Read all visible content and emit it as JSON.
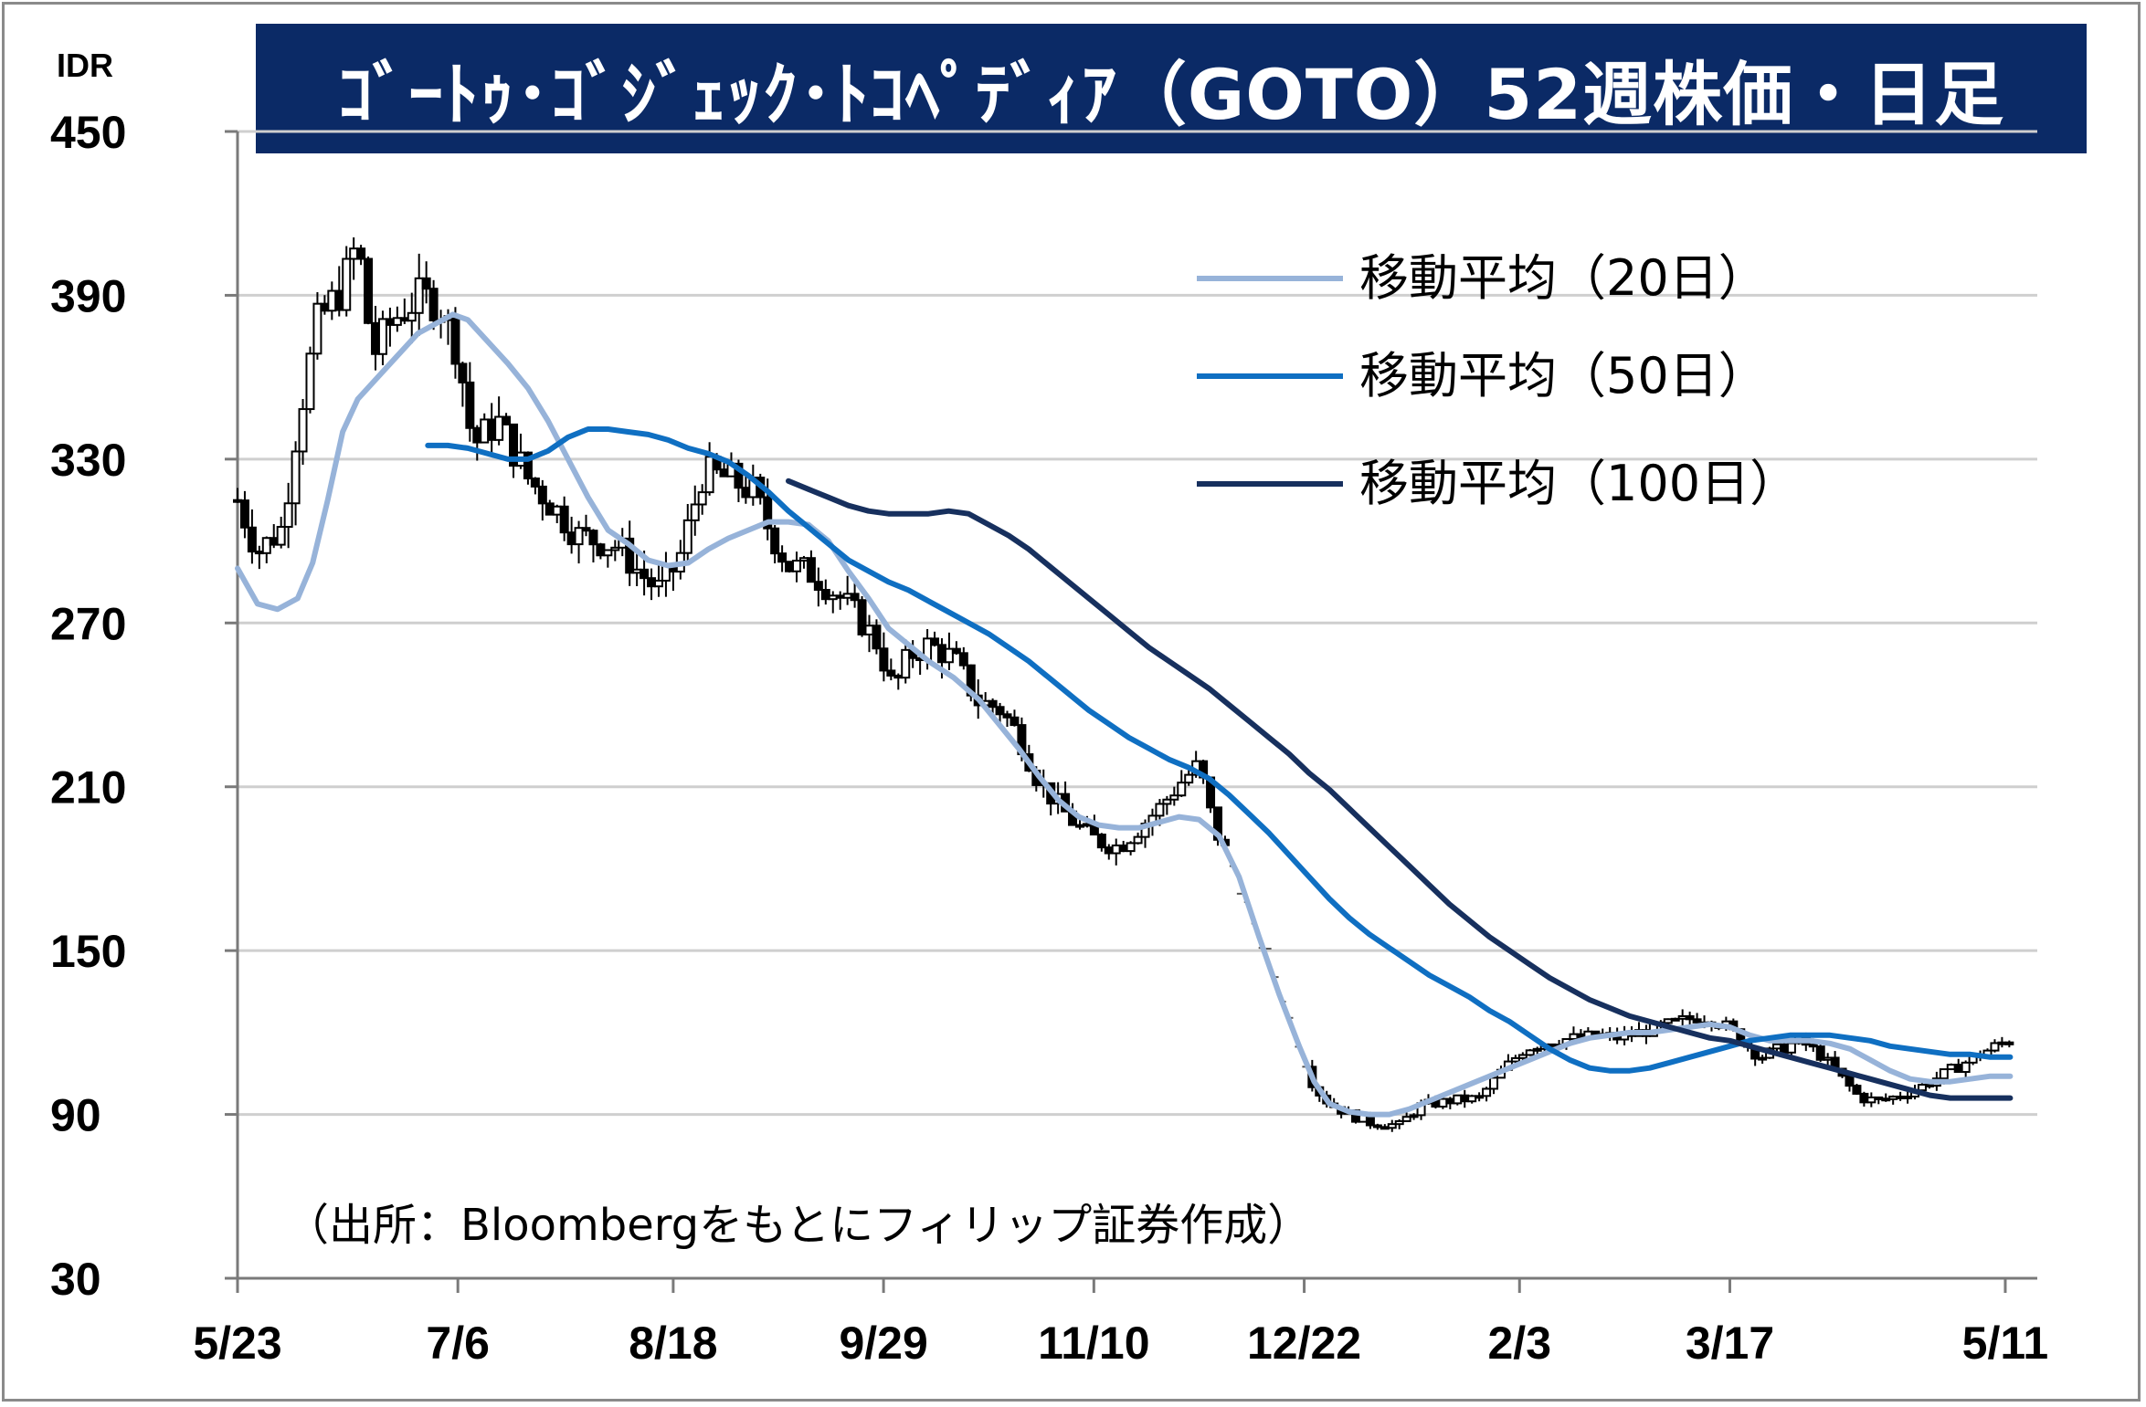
{
  "title": "ｺﾞｰﾄｩ･ｺﾞｼﾞｪｯｸ･ﾄｺﾍﾟﾃﾞｨｱ（GOTO）52週株価・日足",
  "source_note": "（出所：Bloombergをもとにフィリップ証券作成）",
  "chart_data": {
    "type": "candlestick",
    "title": "ｺﾞｰﾄｩ･ｺﾞｼﾞｪｯｸ･ﾄｺﾍﾟﾃﾞｨｱ（GOTO）52週株価・日足",
    "ylabel": "IDR",
    "ylim": [
      30,
      450
    ],
    "yticks": [
      450,
      390,
      330,
      270,
      210,
      150,
      90,
      30
    ],
    "xlim_days": [
      0,
      354
    ],
    "xticks": [
      {
        "label": "5/23",
        "day": 0
      },
      {
        "label": "7/6",
        "day": 44
      },
      {
        "label": "8/18",
        "day": 87
      },
      {
        "label": "9/29",
        "day": 129
      },
      {
        "label": "11/10",
        "day": 171
      },
      {
        "label": "12/22",
        "day": 213
      },
      {
        "label": "2/3",
        "day": 256
      },
      {
        "label": "3/17",
        "day": 298
      },
      {
        "label": "5/11",
        "day": 353
      }
    ],
    "grid": true,
    "legend_position": "top-right",
    "price_path": [
      [
        0,
        315
      ],
      [
        4,
        296
      ],
      [
        9,
        305
      ],
      [
        12,
        343
      ],
      [
        16,
        380
      ],
      [
        21,
        393
      ],
      [
        24,
        410
      ],
      [
        27,
        368
      ],
      [
        31,
        381
      ],
      [
        36,
        389
      ],
      [
        40,
        388
      ],
      [
        44,
        370
      ],
      [
        47,
        335
      ],
      [
        52,
        344
      ],
      [
        58,
        323
      ],
      [
        62,
        315
      ],
      [
        68,
        302
      ],
      [
        72,
        300
      ],
      [
        76,
        298
      ],
      [
        80,
        289
      ],
      [
        84,
        282
      ],
      [
        88,
        292
      ],
      [
        93,
        325
      ],
      [
        98,
        323
      ],
      [
        103,
        318
      ],
      [
        106,
        305
      ],
      [
        110,
        291
      ],
      [
        115,
        288
      ],
      [
        120,
        280
      ],
      [
        124,
        272
      ],
      [
        128,
        262
      ],
      [
        131,
        245
      ],
      [
        134,
        258
      ],
      [
        138,
        262
      ],
      [
        143,
        257
      ],
      [
        148,
        241
      ],
      [
        152,
        239
      ],
      [
        156,
        229
      ],
      [
        160,
        212
      ],
      [
        164,
        203
      ],
      [
        168,
        195
      ],
      [
        172,
        190
      ],
      [
        176,
        188
      ],
      [
        180,
        195
      ],
      [
        184,
        202
      ],
      [
        188,
        211
      ],
      [
        192,
        218
      ],
      [
        195,
        195
      ],
      [
        198,
        184
      ],
      [
        201,
        170
      ],
      [
        203,
        157
      ],
      [
        206,
        148
      ],
      [
        209,
        132
      ],
      [
        212,
        115
      ],
      [
        215,
        100
      ],
      [
        218,
        94
      ],
      [
        222,
        90
      ],
      [
        226,
        87
      ],
      [
        232,
        86
      ],
      [
        236,
        93
      ],
      [
        242,
        95
      ],
      [
        248,
        96
      ],
      [
        252,
        105
      ],
      [
        257,
        114
      ],
      [
        262,
        117
      ],
      [
        268,
        118
      ],
      [
        272,
        119
      ],
      [
        276,
        118
      ],
      [
        280,
        120
      ],
      [
        284,
        122
      ],
      [
        288,
        124
      ],
      [
        292,
        126
      ],
      [
        296,
        124
      ],
      [
        300,
        118
      ],
      [
        304,
        111
      ],
      [
        308,
        114
      ],
      [
        312,
        117
      ],
      [
        316,
        112
      ],
      [
        320,
        104
      ],
      [
        324,
        96
      ],
      [
        328,
        95
      ],
      [
        332,
        97
      ],
      [
        336,
        100
      ],
      [
        340,
        104
      ],
      [
        344,
        108
      ],
      [
        348,
        112
      ],
      [
        352,
        116
      ],
      [
        354,
        117
      ]
    ],
    "series": [
      {
        "name": "移動平均（20日）",
        "color": "#97b3d9",
        "points": [
          [
            0,
            290
          ],
          [
            4,
            277
          ],
          [
            8,
            275
          ],
          [
            12,
            279
          ],
          [
            15,
            292
          ],
          [
            18,
            315
          ],
          [
            21,
            340
          ],
          [
            24,
            352
          ],
          [
            28,
            360
          ],
          [
            32,
            368
          ],
          [
            36,
            376
          ],
          [
            40,
            380
          ],
          [
            43,
            383
          ],
          [
            46,
            381
          ],
          [
            50,
            373
          ],
          [
            54,
            365
          ],
          [
            58,
            356
          ],
          [
            62,
            344
          ],
          [
            66,
            330
          ],
          [
            70,
            316
          ],
          [
            74,
            304
          ],
          [
            78,
            299
          ],
          [
            82,
            293
          ],
          [
            86,
            291
          ],
          [
            90,
            292
          ],
          [
            94,
            297
          ],
          [
            98,
            301
          ],
          [
            102,
            304
          ],
          [
            106,
            307
          ],
          [
            110,
            307
          ],
          [
            114,
            306
          ],
          [
            118,
            300
          ],
          [
            122,
            289
          ],
          [
            126,
            279
          ],
          [
            130,
            268
          ],
          [
            134,
            262
          ],
          [
            138,
            256
          ],
          [
            143,
            250
          ],
          [
            148,
            242
          ],
          [
            152,
            233
          ],
          [
            156,
            224
          ],
          [
            160,
            214
          ],
          [
            164,
            205
          ],
          [
            168,
            199
          ],
          [
            172,
            196
          ],
          [
            176,
            195
          ],
          [
            180,
            195
          ],
          [
            184,
            197
          ],
          [
            188,
            199
          ],
          [
            192,
            198
          ],
          [
            196,
            192
          ],
          [
            200,
            177
          ],
          [
            204,
            155
          ],
          [
            208,
            134
          ],
          [
            212,
            115
          ],
          [
            215,
            102
          ],
          [
            218,
            94
          ],
          [
            222,
            91
          ],
          [
            226,
            90
          ],
          [
            230,
            90
          ],
          [
            234,
            92
          ],
          [
            238,
            95
          ],
          [
            242,
            98
          ],
          [
            246,
            101
          ],
          [
            250,
            104
          ],
          [
            254,
            107
          ],
          [
            258,
            110
          ],
          [
            262,
            113
          ],
          [
            266,
            116
          ],
          [
            270,
            118
          ],
          [
            274,
            119
          ],
          [
            278,
            120
          ],
          [
            282,
            120
          ],
          [
            286,
            121
          ],
          [
            290,
            122
          ],
          [
            294,
            123
          ],
          [
            298,
            122
          ],
          [
            302,
            119
          ],
          [
            306,
            117
          ],
          [
            310,
            117
          ],
          [
            314,
            117
          ],
          [
            318,
            116
          ],
          [
            322,
            114
          ],
          [
            326,
            110
          ],
          [
            330,
            106
          ],
          [
            334,
            103
          ],
          [
            338,
            102
          ],
          [
            342,
            102
          ],
          [
            346,
            103
          ],
          [
            350,
            104
          ],
          [
            354,
            104
          ]
        ]
      },
      {
        "name": "移動平均（50日）",
        "color": "#0f6fc2",
        "points": [
          [
            38,
            335
          ],
          [
            42,
            335
          ],
          [
            46,
            334
          ],
          [
            50,
            332
          ],
          [
            54,
            330
          ],
          [
            58,
            330
          ],
          [
            62,
            333
          ],
          [
            66,
            338
          ],
          [
            70,
            341
          ],
          [
            74,
            341
          ],
          [
            78,
            340
          ],
          [
            82,
            339
          ],
          [
            86,
            337
          ],
          [
            90,
            334
          ],
          [
            94,
            332
          ],
          [
            98,
            329
          ],
          [
            102,
            324
          ],
          [
            106,
            318
          ],
          [
            110,
            311
          ],
          [
            114,
            305
          ],
          [
            118,
            299
          ],
          [
            122,
            293
          ],
          [
            126,
            289
          ],
          [
            130,
            285
          ],
          [
            134,
            282
          ],
          [
            138,
            278
          ],
          [
            142,
            274
          ],
          [
            146,
            270
          ],
          [
            150,
            266
          ],
          [
            154,
            261
          ],
          [
            158,
            256
          ],
          [
            162,
            250
          ],
          [
            166,
            244
          ],
          [
            170,
            238
          ],
          [
            174,
            233
          ],
          [
            178,
            228
          ],
          [
            182,
            224
          ],
          [
            186,
            220
          ],
          [
            190,
            217
          ],
          [
            194,
            213
          ],
          [
            198,
            207
          ],
          [
            202,
            200
          ],
          [
            206,
            193
          ],
          [
            210,
            185
          ],
          [
            214,
            177
          ],
          [
            218,
            169
          ],
          [
            222,
            162
          ],
          [
            226,
            156
          ],
          [
            230,
            151
          ],
          [
            234,
            146
          ],
          [
            238,
            141
          ],
          [
            242,
            137
          ],
          [
            246,
            133
          ],
          [
            250,
            128
          ],
          [
            254,
            124
          ],
          [
            258,
            119
          ],
          [
            262,
            114
          ],
          [
            266,
            110
          ],
          [
            270,
            107
          ],
          [
            274,
            106
          ],
          [
            278,
            106
          ],
          [
            282,
            107
          ],
          [
            286,
            109
          ],
          [
            290,
            111
          ],
          [
            294,
            113
          ],
          [
            298,
            115
          ],
          [
            302,
            117
          ],
          [
            306,
            118
          ],
          [
            310,
            119
          ],
          [
            314,
            119
          ],
          [
            318,
            119
          ],
          [
            322,
            118
          ],
          [
            326,
            117
          ],
          [
            330,
            115
          ],
          [
            334,
            114
          ],
          [
            338,
            113
          ],
          [
            342,
            112
          ],
          [
            346,
            112
          ],
          [
            350,
            111
          ],
          [
            354,
            111
          ]
        ]
      },
      {
        "name": "移動平均（100日）",
        "color": "#17305e",
        "points": [
          [
            110,
            322
          ],
          [
            114,
            319
          ],
          [
            118,
            316
          ],
          [
            122,
            313
          ],
          [
            126,
            311
          ],
          [
            130,
            310
          ],
          [
            134,
            310
          ],
          [
            138,
            310
          ],
          [
            142,
            311
          ],
          [
            146,
            310
          ],
          [
            150,
            306
          ],
          [
            154,
            302
          ],
          [
            158,
            297
          ],
          [
            162,
            291
          ],
          [
            166,
            285
          ],
          [
            170,
            279
          ],
          [
            174,
            273
          ],
          [
            178,
            267
          ],
          [
            182,
            261
          ],
          [
            186,
            256
          ],
          [
            190,
            251
          ],
          [
            194,
            246
          ],
          [
            198,
            240
          ],
          [
            202,
            234
          ],
          [
            206,
            228
          ],
          [
            210,
            222
          ],
          [
            214,
            215
          ],
          [
            218,
            209
          ],
          [
            222,
            202
          ],
          [
            226,
            195
          ],
          [
            230,
            188
          ],
          [
            234,
            181
          ],
          [
            238,
            174
          ],
          [
            242,
            167
          ],
          [
            246,
            161
          ],
          [
            250,
            155
          ],
          [
            254,
            150
          ],
          [
            258,
            145
          ],
          [
            262,
            140
          ],
          [
            266,
            136
          ],
          [
            270,
            132
          ],
          [
            274,
            129
          ],
          [
            278,
            126
          ],
          [
            282,
            124
          ],
          [
            286,
            122
          ],
          [
            290,
            120
          ],
          [
            294,
            118
          ],
          [
            298,
            117
          ],
          [
            302,
            115
          ],
          [
            306,
            113
          ],
          [
            310,
            111
          ],
          [
            314,
            109
          ],
          [
            318,
            107
          ],
          [
            322,
            105
          ],
          [
            326,
            103
          ],
          [
            330,
            101
          ],
          [
            334,
            99
          ],
          [
            338,
            97
          ],
          [
            342,
            96
          ],
          [
            346,
            96
          ],
          [
            350,
            96
          ],
          [
            354,
            96
          ]
        ]
      }
    ]
  }
}
